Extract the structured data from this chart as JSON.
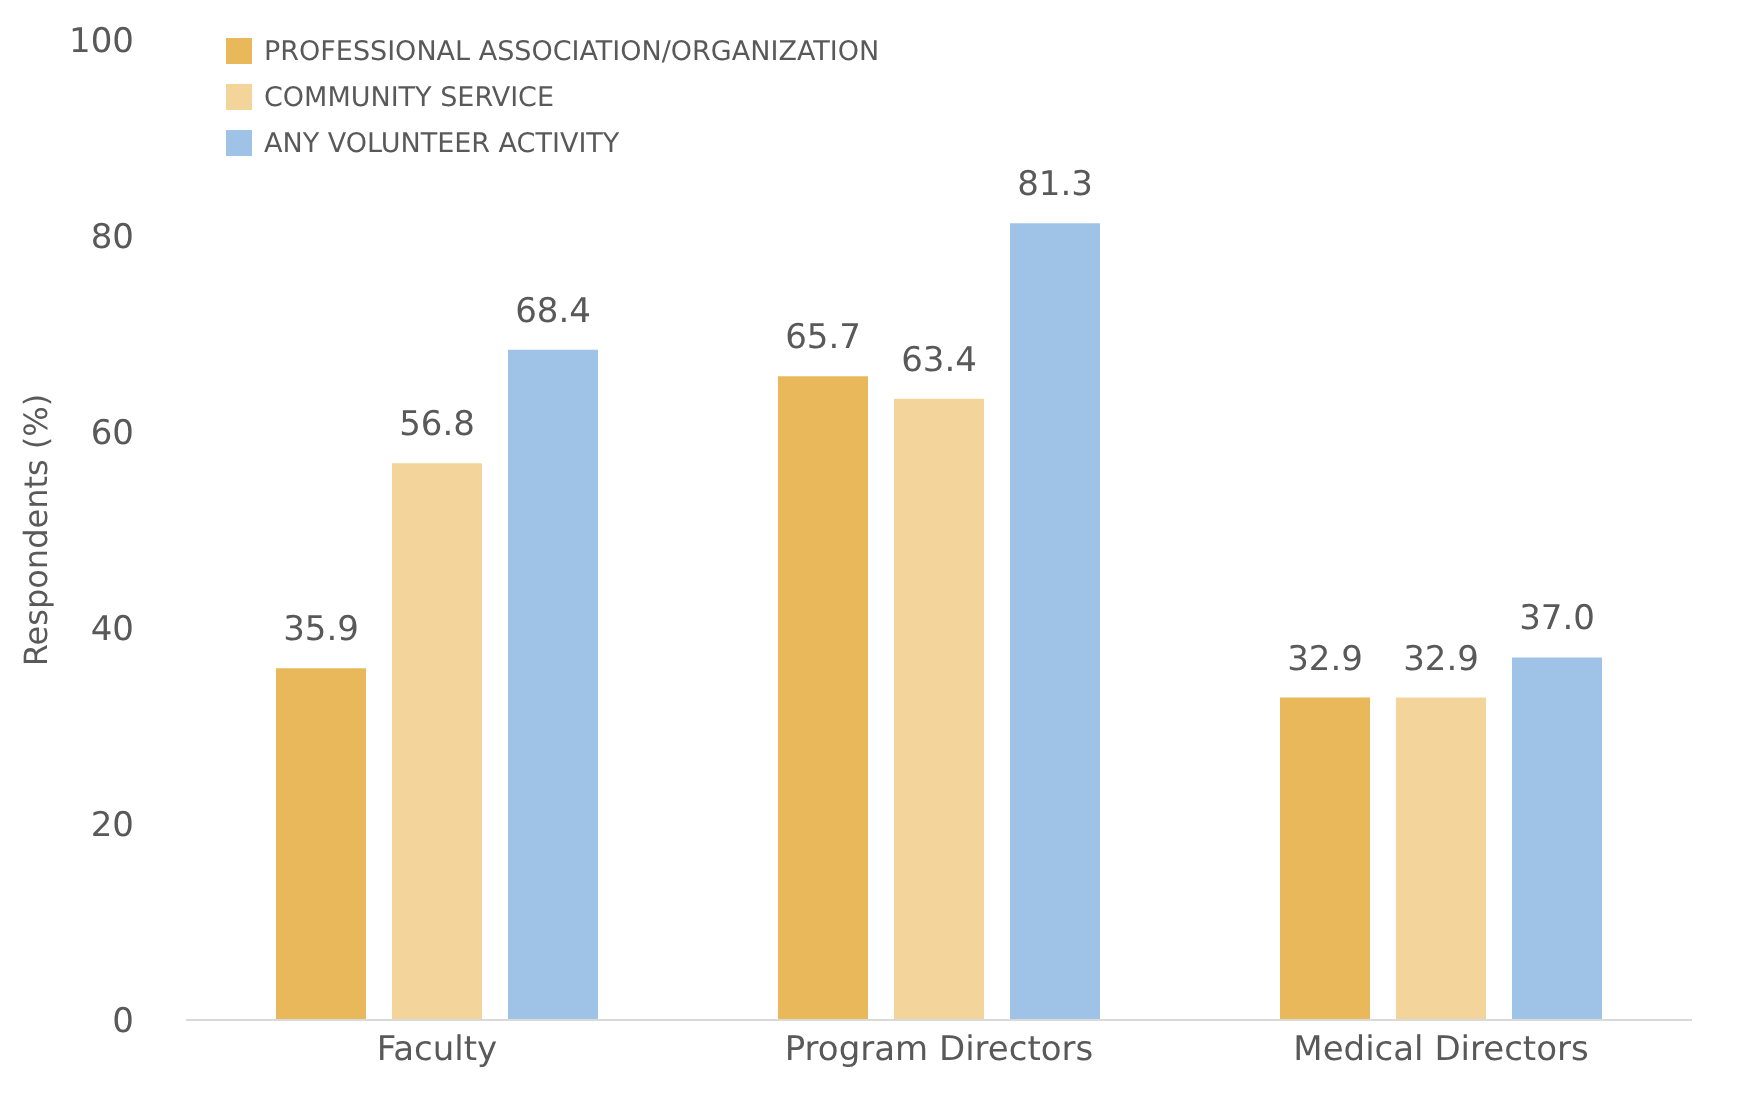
{
  "chart_data": {
    "type": "bar",
    "ylabel": "Respondents (%)",
    "categories": [
      "Faculty",
      "Program Directors",
      "Medical Directors"
    ],
    "series": [
      {
        "name": "PROFESSIONAL ASSOCIATION/ORGANIZATION",
        "color": "#e9b85a",
        "values": [
          35.9,
          65.7,
          32.9
        ],
        "value_labels": [
          "35.9",
          "65.7",
          "32.9"
        ]
      },
      {
        "name": "COMMUNITY SERVICE",
        "color": "#f3d49b",
        "values": [
          56.8,
          63.4,
          32.9
        ],
        "value_labels": [
          "56.8",
          "63.4",
          "32.9"
        ]
      },
      {
        "name": "ANY VOLUNTEER ACTIVITY",
        "color": "#9fc3e6",
        "values": [
          68.4,
          81.3,
          37.0
        ],
        "value_labels": [
          "68.4",
          "81.3",
          "37.0"
        ]
      }
    ],
    "ylim": [
      0,
      100
    ],
    "yticks": [
      0,
      20,
      40,
      60,
      80,
      100
    ],
    "grid": false,
    "legend": "top left"
  }
}
